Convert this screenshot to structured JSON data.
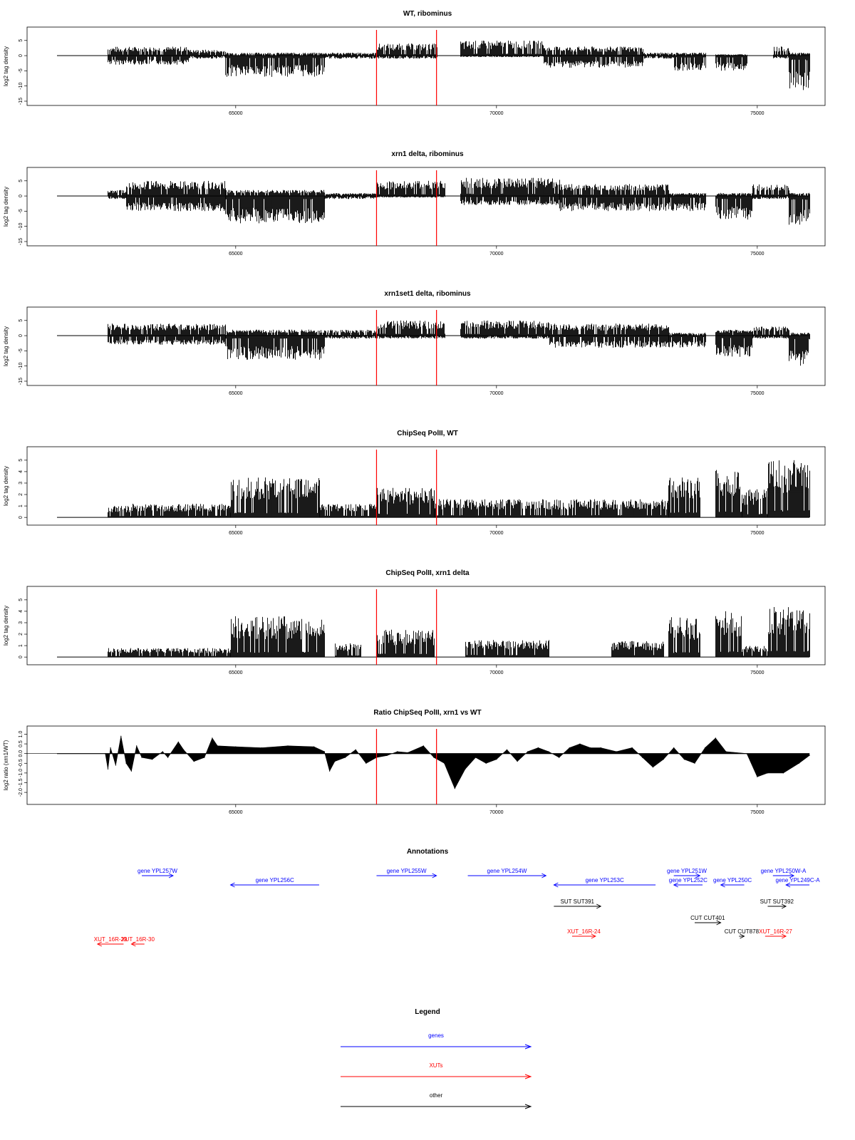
{
  "colors": {
    "genes": "#0000ff",
    "xuts": "#ff0000",
    "other": "#000000",
    "marker": "#ff0000",
    "trace": "#000000"
  },
  "chart_data": [
    {
      "type": "bar",
      "title": "WT, ribominus",
      "ylabel": "log2 tag density",
      "ylim": [
        -15,
        8
      ],
      "yticks": [
        "5",
        "0",
        "-5",
        "-10",
        "-15"
      ],
      "xlim": [
        61000,
        76300
      ],
      "xticks": [
        "65000",
        "70000",
        "75000"
      ],
      "markers": [
        67700,
        68850
      ],
      "series": [
        {
          "name": "",
          "regions": [
            {
              "start": 62550,
              "end": 64100,
              "top": 3,
              "bottom": -3
            },
            {
              "start": 64100,
              "end": 64800,
              "top": 2,
              "bottom": -1
            },
            {
              "start": 64800,
              "end": 66700,
              "top": 1,
              "bottom": -7
            },
            {
              "start": 66700,
              "end": 67700,
              "top": 1,
              "bottom": -1
            },
            {
              "start": 67700,
              "end": 68850,
              "top": 4,
              "bottom": -1
            },
            {
              "start": 69300,
              "end": 70900,
              "top": 5,
              "bottom": -0.5
            },
            {
              "start": 70900,
              "end": 72800,
              "top": 3,
              "bottom": -4
            },
            {
              "start": 72800,
              "end": 73400,
              "top": 1,
              "bottom": -1
            },
            {
              "start": 73400,
              "end": 74000,
              "top": 1,
              "bottom": -5
            },
            {
              "start": 74200,
              "end": 74800,
              "top": 0.5,
              "bottom": -5
            },
            {
              "start": 75300,
              "end": 75600,
              "top": 3,
              "bottom": -1
            },
            {
              "start": 75600,
              "end": 76000,
              "top": 1,
              "bottom": -12
            }
          ]
        }
      ]
    },
    {
      "type": "bar",
      "title": "xrn1 delta, ribominus",
      "ylabel": "log2 tag density",
      "ylim": [
        -15,
        8
      ],
      "yticks": [
        "5",
        "0",
        "-5",
        "-10",
        "-15"
      ],
      "xlim": [
        61000,
        76300
      ],
      "xticks": [
        "65000",
        "70000",
        "75000"
      ],
      "markers": [
        67700,
        68850
      ],
      "series": [
        {
          "name": "",
          "regions": [
            {
              "start": 62550,
              "end": 62900,
              "top": 2,
              "bottom": -1
            },
            {
              "start": 62900,
              "end": 64800,
              "top": 5,
              "bottom": -5
            },
            {
              "start": 64800,
              "end": 66700,
              "top": 2,
              "bottom": -9
            },
            {
              "start": 66700,
              "end": 67700,
              "top": 1,
              "bottom": -1
            },
            {
              "start": 67700,
              "end": 69000,
              "top": 5,
              "bottom": -0.5
            },
            {
              "start": 69300,
              "end": 71200,
              "top": 6,
              "bottom": -3
            },
            {
              "start": 71200,
              "end": 73300,
              "top": 4,
              "bottom": -5
            },
            {
              "start": 73300,
              "end": 74000,
              "top": 1,
              "bottom": -5
            },
            {
              "start": 74200,
              "end": 74900,
              "top": 1,
              "bottom": -8
            },
            {
              "start": 74900,
              "end": 75600,
              "top": 4,
              "bottom": -1
            },
            {
              "start": 75600,
              "end": 76000,
              "top": 1,
              "bottom": -10
            }
          ]
        }
      ]
    },
    {
      "type": "bar",
      "title": "xrn1set1 delta, ribominus",
      "ylabel": "log2 tag density",
      "ylim": [
        -15,
        8
      ],
      "yticks": [
        "5",
        "0",
        "-5",
        "-10",
        "-15"
      ],
      "xlim": [
        61000,
        76300
      ],
      "xticks": [
        "65000",
        "70000",
        "75000"
      ],
      "markers": [
        67700,
        68850
      ],
      "series": [
        {
          "name": "",
          "regions": [
            {
              "start": 62550,
              "end": 64800,
              "top": 4,
              "bottom": -3
            },
            {
              "start": 64800,
              "end": 66700,
              "top": 2,
              "bottom": -8
            },
            {
              "start": 66700,
              "end": 67700,
              "top": 2,
              "bottom": -1
            },
            {
              "start": 67700,
              "end": 69000,
              "top": 5,
              "bottom": -1
            },
            {
              "start": 69300,
              "end": 71000,
              "top": 5,
              "bottom": -1
            },
            {
              "start": 71000,
              "end": 73300,
              "top": 4,
              "bottom": -4
            },
            {
              "start": 73300,
              "end": 74000,
              "top": 1,
              "bottom": -4
            },
            {
              "start": 74200,
              "end": 74900,
              "top": 2,
              "bottom": -7
            },
            {
              "start": 74900,
              "end": 75600,
              "top": 3,
              "bottom": -1
            },
            {
              "start": 75600,
              "end": 76000,
              "top": 1,
              "bottom": -10
            }
          ]
        }
      ]
    },
    {
      "type": "bar",
      "title": "ChipSeq PolII, WT",
      "ylabel": "log2 tag density",
      "ylim": [
        -0.3,
        5.8
      ],
      "yticks": [
        "0",
        "1",
        "2",
        "3",
        "4",
        "5"
      ],
      "xlim": [
        61000,
        76300
      ],
      "xticks": [
        "65000",
        "70000",
        "75000"
      ],
      "markers": [
        67700,
        68850
      ],
      "series": [
        {
          "name": "",
          "regions": [
            {
              "start": 62550,
              "end": 63000,
              "top": 1,
              "bottom": 0
            },
            {
              "start": 63000,
              "end": 64900,
              "top": 1.2,
              "bottom": 0
            },
            {
              "start": 64900,
              "end": 66600,
              "top": 3.5,
              "bottom": 0
            },
            {
              "start": 66600,
              "end": 67700,
              "top": 1.2,
              "bottom": 0
            },
            {
              "start": 67700,
              "end": 68800,
              "top": 2.6,
              "bottom": 0
            },
            {
              "start": 68800,
              "end": 73300,
              "top": 1.6,
              "bottom": 0
            },
            {
              "start": 73300,
              "end": 73900,
              "top": 3.6,
              "bottom": 0
            },
            {
              "start": 74200,
              "end": 74700,
              "top": 4.2,
              "bottom": 0
            },
            {
              "start": 74700,
              "end": 75200,
              "top": 2.5,
              "bottom": 0
            },
            {
              "start": 75200,
              "end": 76000,
              "top": 5.0,
              "bottom": 0
            }
          ]
        }
      ]
    },
    {
      "type": "bar",
      "title": "ChipSeq PolII, xrn1 delta",
      "ylabel": "log2 tag density",
      "ylim": [
        -0.3,
        5.8
      ],
      "yticks": [
        "0",
        "1",
        "2",
        "3",
        "4",
        "5"
      ],
      "xlim": [
        61000,
        76300
      ],
      "xticks": [
        "65000",
        "70000",
        "75000"
      ],
      "markers": [
        67700,
        68850
      ],
      "series": [
        {
          "name": "",
          "regions": [
            {
              "start": 62550,
              "end": 64900,
              "top": 0.8,
              "bottom": 0
            },
            {
              "start": 64900,
              "end": 66700,
              "top": 3.6,
              "bottom": 0
            },
            {
              "start": 66900,
              "end": 67400,
              "top": 1.2,
              "bottom": 0
            },
            {
              "start": 67700,
              "end": 68800,
              "top": 2.4,
              "bottom": 0
            },
            {
              "start": 69400,
              "end": 71000,
              "top": 1.5,
              "bottom": 0
            },
            {
              "start": 72200,
              "end": 73200,
              "top": 1.4,
              "bottom": 0
            },
            {
              "start": 73300,
              "end": 73900,
              "top": 3.5,
              "bottom": 0
            },
            {
              "start": 74200,
              "end": 74700,
              "top": 4.0,
              "bottom": 0
            },
            {
              "start": 74700,
              "end": 75200,
              "top": 1.0,
              "bottom": 0
            },
            {
              "start": 75200,
              "end": 76000,
              "top": 4.4,
              "bottom": 0
            }
          ]
        }
      ]
    },
    {
      "type": "area",
      "title": "Ratio ChipSeq PolII, xrn1 vs WT",
      "ylabel": "log2 ratio (xrn1/WT)",
      "ylim": [
        -2.4,
        1.2
      ],
      "yticks": [
        "1.0",
        "0.5",
        "0.0",
        "-0.5",
        "-1.0",
        "-1.5",
        "-2.0"
      ],
      "xlim": [
        61000,
        76300
      ],
      "xticks": [
        "65000",
        "70000",
        "75000"
      ],
      "markers": [
        67700,
        68850
      ],
      "series": [
        {
          "name": "",
          "points": [
            [
              61000,
              0
            ],
            [
              62500,
              0
            ],
            [
              62550,
              -0.8
            ],
            [
              62600,
              0.3
            ],
            [
              62700,
              -0.6
            ],
            [
              62800,
              0.9
            ],
            [
              62900,
              -0.5
            ],
            [
              63000,
              -0.9
            ],
            [
              63100,
              0.4
            ],
            [
              63200,
              -0.2
            ],
            [
              63400,
              -0.3
            ],
            [
              63600,
              0.1
            ],
            [
              63700,
              -0.2
            ],
            [
              63900,
              0.6
            ],
            [
              64000,
              0.2
            ],
            [
              64200,
              -0.4
            ],
            [
              64400,
              -0.2
            ],
            [
              64550,
              0.8
            ],
            [
              64650,
              0.4
            ],
            [
              65000,
              0.35
            ],
            [
              65500,
              0.3
            ],
            [
              66000,
              0.4
            ],
            [
              66500,
              0.35
            ],
            [
              66700,
              0.1
            ],
            [
              66800,
              -0.9
            ],
            [
              66900,
              -0.4
            ],
            [
              67100,
              -0.2
            ],
            [
              67300,
              0.2
            ],
            [
              67500,
              -0.5
            ],
            [
              67700,
              -0.2
            ],
            [
              67900,
              -0.1
            ],
            [
              68100,
              0.1
            ],
            [
              68300,
              0.05
            ],
            [
              68600,
              0.4
            ],
            [
              68800,
              -0.2
            ],
            [
              69000,
              -0.5
            ],
            [
              69200,
              -1.8
            ],
            [
              69400,
              -0.8
            ],
            [
              69600,
              -0.2
            ],
            [
              69800,
              -0.5
            ],
            [
              70000,
              -0.3
            ],
            [
              70200,
              0.2
            ],
            [
              70400,
              -0.4
            ],
            [
              70600,
              0.1
            ],
            [
              70800,
              0.3
            ],
            [
              71000,
              0.1
            ],
            [
              71200,
              -0.2
            ],
            [
              71400,
              0.3
            ],
            [
              71600,
              0.5
            ],
            [
              71800,
              0.3
            ],
            [
              72000,
              0.3
            ],
            [
              72300,
              0.1
            ],
            [
              72600,
              0.3
            ],
            [
              72800,
              -0.2
            ],
            [
              73000,
              -0.7
            ],
            [
              73200,
              -0.3
            ],
            [
              73400,
              0.3
            ],
            [
              73600,
              -0.3
            ],
            [
              73800,
              -0.5
            ],
            [
              74000,
              0.3
            ],
            [
              74200,
              0.8
            ],
            [
              74400,
              0.1
            ],
            [
              74800,
              0.0
            ],
            [
              75000,
              -1.2
            ],
            [
              75200,
              -1.0
            ],
            [
              75500,
              -1.0
            ],
            [
              75800,
              -0.5
            ],
            [
              76000,
              -0.1
            ]
          ]
        }
      ]
    }
  ],
  "annotations": {
    "title": "Annotations",
    "items": [
      {
        "label": "gene YPL257W",
        "kind": "genes",
        "start": 63200,
        "end": 63800,
        "row": 0
      },
      {
        "label": "gene YPL256C",
        "kind": "genes",
        "start": 64900,
        "end": 66600,
        "row": 1
      },
      {
        "label": "gene YPL255W",
        "kind": "genes",
        "start": 67700,
        "end": 68850,
        "row": 0
      },
      {
        "label": "gene YPL254W",
        "kind": "genes",
        "start": 69450,
        "end": 70950,
        "row": 0
      },
      {
        "label": "gene YPL253C",
        "kind": "genes",
        "start": 71100,
        "end": 73050,
        "row": 1
      },
      {
        "label": "gene YPL251W",
        "kind": "genes",
        "start": 73400,
        "end": 73900,
        "row": 0
      },
      {
        "label": "gene YPL252C",
        "kind": "genes",
        "start": 73400,
        "end": 73950,
        "row": 1
      },
      {
        "label": "gene YPL250C",
        "kind": "genes",
        "start": 74300,
        "end": 74750,
        "row": 1
      },
      {
        "label": "gene YPL250W-A",
        "kind": "genes",
        "start": 75300,
        "end": 75700,
        "row": 0
      },
      {
        "label": "gene YPL249C-A",
        "kind": "genes",
        "start": 75550,
        "end": 76000,
        "row": 1
      },
      {
        "label": "SUT SUT391",
        "kind": "other",
        "start": 71100,
        "end": 72000,
        "row": 2
      },
      {
        "label": "SUT SUT392",
        "kind": "other",
        "start": 75200,
        "end": 75550,
        "row": 2
      },
      {
        "label": "CUT CUT401",
        "kind": "other",
        "start": 73800,
        "end": 74300,
        "row": 3
      },
      {
        "label": "CUT CUT878",
        "kind": "other",
        "start": 74650,
        "end": 74750,
        "row": 4
      },
      {
        "label": "XUT_16R-29",
        "kind": "xuts",
        "start": 62350,
        "end": 62850,
        "row": 5
      },
      {
        "label": "XUT_16R-30",
        "kind": "xuts",
        "start": 63000,
        "end": 63250,
        "row": 5
      },
      {
        "label": "XUT_16R-24",
        "kind": "xuts",
        "start": 71450,
        "end": 71900,
        "row": 4
      },
      {
        "label": "XUT_16R-27",
        "kind": "xuts",
        "start": 75150,
        "end": 75550,
        "row": 4
      }
    ]
  },
  "legend": {
    "title": "Legend",
    "entries": [
      {
        "label": "genes",
        "kind": "genes"
      },
      {
        "label": "XUTs",
        "kind": "xuts"
      },
      {
        "label": "other",
        "kind": "other"
      }
    ]
  }
}
